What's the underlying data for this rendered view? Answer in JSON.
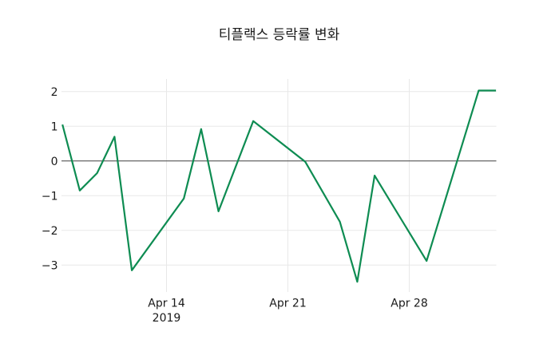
{
  "chart_data": {
    "type": "line",
    "title": "티플랙스 등락률 변화",
    "x_axis": {
      "type": "date",
      "ticks": [
        {
          "label": "Apr 14",
          "sublabel": "2019",
          "date": "2019-04-14"
        },
        {
          "label": "Apr 21",
          "sublabel": "",
          "date": "2019-04-21"
        },
        {
          "label": "Apr 28",
          "sublabel": "",
          "date": "2019-04-28"
        }
      ]
    },
    "y_axis": {
      "ticks": [
        {
          "label": "2",
          "value": 2
        },
        {
          "label": "1",
          "value": 1
        },
        {
          "label": "0",
          "value": 0
        },
        {
          "label": "−1",
          "value": -1
        },
        {
          "label": "−2",
          "value": -2
        },
        {
          "label": "−3",
          "value": -3
        }
      ],
      "range": [
        -3.77,
        2.36
      ]
    },
    "series": [
      {
        "color": "#0e8c52",
        "points": [
          {
            "date": "2019-04-08",
            "value": 1.05
          },
          {
            "date": "2019-04-09",
            "value": -0.85
          },
          {
            "date": "2019-04-10",
            "value": -0.35
          },
          {
            "date": "2019-04-11",
            "value": 0.7
          },
          {
            "date": "2019-04-12",
            "value": -3.15
          },
          {
            "date": "2019-04-15",
            "value": -1.08
          },
          {
            "date": "2019-04-16",
            "value": 0.92
          },
          {
            "date": "2019-04-17",
            "value": -1.45
          },
          {
            "date": "2019-04-19",
            "value": 1.15
          },
          {
            "date": "2019-04-22",
            "value": -0.02
          },
          {
            "date": "2019-04-24",
            "value": -1.75
          },
          {
            "date": "2019-04-25",
            "value": -3.48
          },
          {
            "date": "2019-04-26",
            "value": -0.42
          },
          {
            "date": "2019-04-29",
            "value": -2.88
          },
          {
            "date": "2019-05-02",
            "value": 2.03
          },
          {
            "date": "2019-05-03",
            "value": 2.03
          }
        ]
      }
    ],
    "grid": {
      "visible": true,
      "color": "#e8e8e8"
    },
    "zero_line": {
      "visible": true,
      "color": "#444444"
    },
    "legend": {
      "visible": false
    },
    "text_color": "#1a1a1a",
    "background": "#ffffff"
  }
}
